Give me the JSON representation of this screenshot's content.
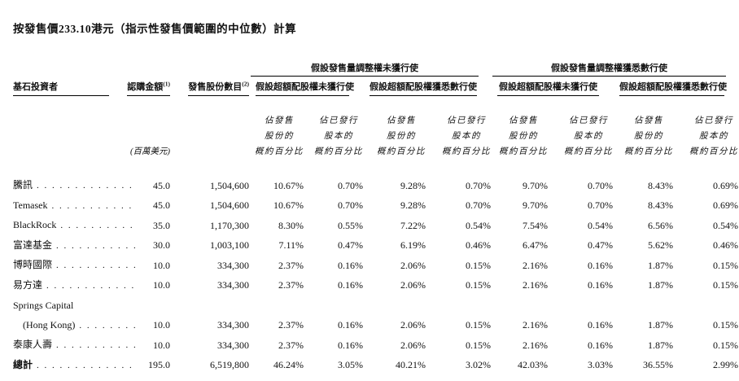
{
  "page": {
    "title": "按發售價233.10港元（指示性發售價範圍的中位數）計算"
  },
  "table": {
    "stub_header": "基石投資者",
    "col2_header": "認購金額",
    "col2_note": "(1)",
    "col2_unit": "(百萬美元)",
    "col3_header": "發售股份數目",
    "col3_note": "(2)",
    "group_headers": [
      "假設發售量調整權未獲行使",
      "假設發售量調整權獲悉數行使"
    ],
    "subgroup_headers": [
      "假設超額配股權未獲行使",
      "假設超額配股權獲悉數行使",
      "假設超額配股權未獲行使",
      "假設超額配股權獲悉數行使"
    ],
    "pct_of_offer_header": "佔發售\n股份的\n概約百分比",
    "pct_of_capital_header": "佔已發行\n股本的\n概約百分比",
    "rows": [
      {
        "name": "騰訊",
        "leader": true,
        "values": [
          "45.0",
          "1,504,600",
          "10.67%",
          "0.70%",
          "9.28%",
          "0.70%",
          "9.70%",
          "0.70%",
          "8.43%",
          "0.69%"
        ]
      },
      {
        "name": "Temasek",
        "leader": true,
        "values": [
          "45.0",
          "1,504,600",
          "10.67%",
          "0.70%",
          "9.28%",
          "0.70%",
          "9.70%",
          "0.70%",
          "8.43%",
          "0.69%"
        ]
      },
      {
        "name": "BlackRock",
        "leader": true,
        "values": [
          "35.0",
          "1,170,300",
          "8.30%",
          "0.55%",
          "7.22%",
          "0.54%",
          "7.54%",
          "0.54%",
          "6.56%",
          "0.54%"
        ]
      },
      {
        "name": "富達基金",
        "leader": true,
        "values": [
          "30.0",
          "1,003,100",
          "7.11%",
          "0.47%",
          "6.19%",
          "0.46%",
          "6.47%",
          "0.47%",
          "5.62%",
          "0.46%"
        ]
      },
      {
        "name": "博時國際",
        "leader": true,
        "values": [
          "10.0",
          "334,300",
          "2.37%",
          "0.16%",
          "2.06%",
          "0.15%",
          "2.16%",
          "0.16%",
          "1.87%",
          "0.15%"
        ]
      },
      {
        "name": "易方達",
        "leader": true,
        "values": [
          "10.0",
          "334,300",
          "2.37%",
          "0.16%",
          "2.06%",
          "0.15%",
          "2.16%",
          "0.16%",
          "1.87%",
          "0.15%"
        ]
      },
      {
        "name": "Springs Capital",
        "name2": "(Hong Kong)",
        "leader": true,
        "values": [
          "10.0",
          "334,300",
          "2.37%",
          "0.16%",
          "2.06%",
          "0.15%",
          "2.16%",
          "0.16%",
          "1.87%",
          "0.15%"
        ]
      },
      {
        "name": "泰康人壽",
        "leader": true,
        "values": [
          "10.0",
          "334,300",
          "2.37%",
          "0.16%",
          "2.06%",
          "0.15%",
          "2.16%",
          "0.16%",
          "1.87%",
          "0.15%"
        ]
      },
      {
        "name": "總計",
        "leader": true,
        "total": true,
        "values": [
          "195.0",
          "6,519,800",
          "46.24%",
          "3.05%",
          "40.21%",
          "3.02%",
          "42.03%",
          "3.03%",
          "36.55%",
          "2.99%"
        ]
      }
    ]
  }
}
